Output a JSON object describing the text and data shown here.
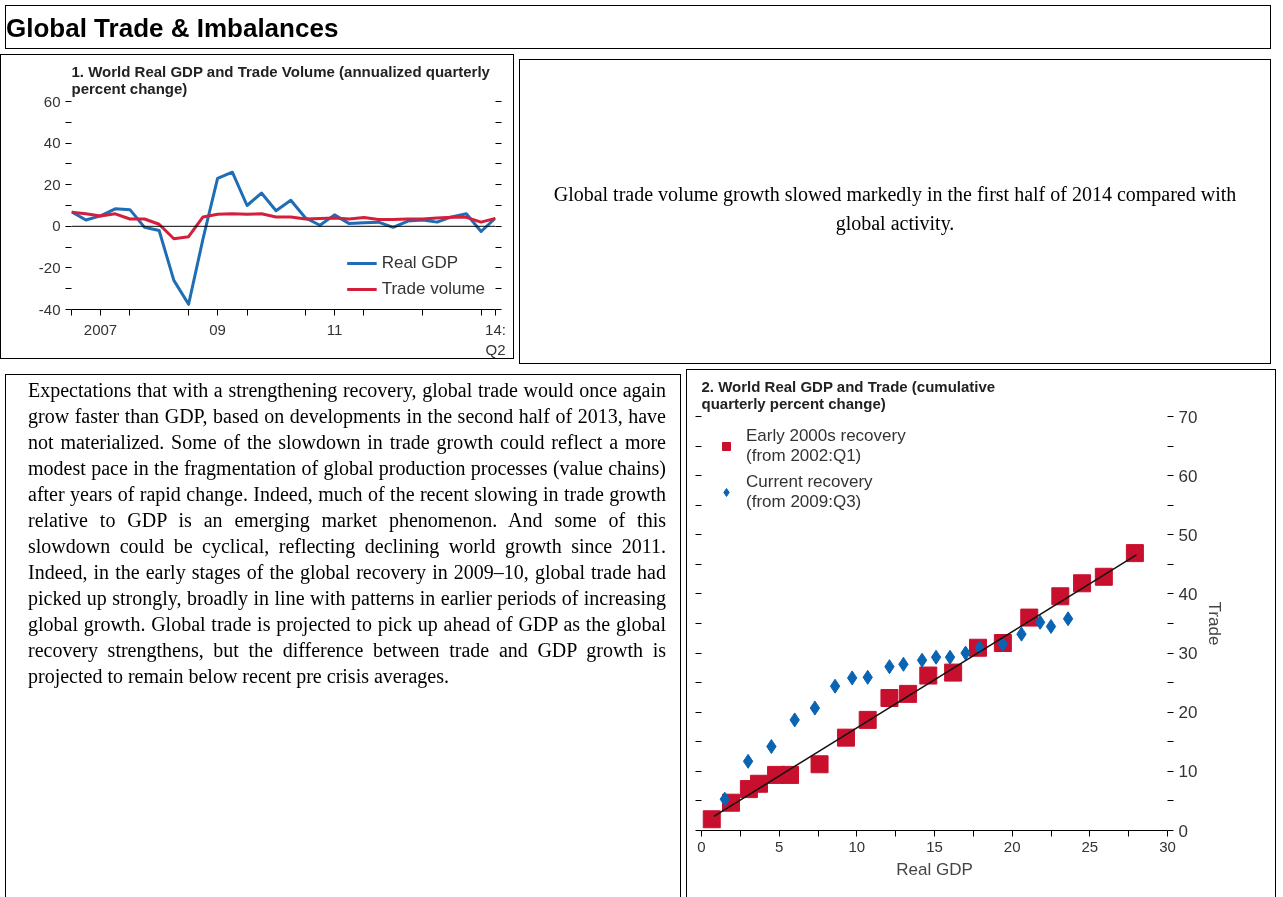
{
  "chart_data": [
    {
      "type": "other",
      "title": "Global Trade & Imbalances"
    },
    {
      "type": "line",
      "title": "1. World Real GDP and Trade Volume (annualized quarterly percent change)",
      "x": [
        "2007-01",
        "2007-04",
        "2007-07",
        "2007-10",
        "2008-01",
        "2008-04",
        "2008-07",
        "2008-10",
        "2009-01",
        "2009-04",
        "2009-07",
        "2009-10",
        "2010-01",
        "2010-04",
        "2010-07",
        "2010-10",
        "2011-01",
        "2011-04",
        "2011-07",
        "2011-10",
        "2012-01",
        "2012-04",
        "2012-07",
        "2012-10",
        "2013-01",
        "2013-04",
        "2013-07",
        "2013-10",
        "2014-01",
        "2014-04"
      ],
      "series": [
        {
          "name": "Real GDP",
          "color": "#1f6db5",
          "values": [
            7,
            3,
            5,
            8.4,
            8,
            -0.5,
            -2,
            -26,
            -37.5,
            -6,
            23,
            26,
            10,
            16,
            7.5,
            12.5,
            4,
            0.5,
            5.5,
            1.3,
            1.7,
            2,
            -0.5,
            2.5,
            3,
            2,
            4.5,
            6,
            -2.5,
            4
          ]
        },
        {
          "name": "Trade volume",
          "color": "#d31f3c",
          "values": [
            6.7,
            6,
            5,
            6,
            3.5,
            3.5,
            1,
            -6,
            -5,
            4.5,
            5.8,
            6,
            5.8,
            6,
            4.5,
            4.5,
            3.5,
            3.7,
            4,
            3.5,
            4.2,
            3.3,
            3.3,
            3.5,
            3.5,
            4,
            4.3,
            4.3,
            2,
            3.8
          ]
        }
      ],
      "xlim": [
        "2007-01",
        "2014-04"
      ],
      "xticks": [
        {
          "value": "2007-01",
          "label": null
        },
        {
          "value": "2007-07",
          "label": "2007"
        },
        {
          "value": "2008-01",
          "label": null
        },
        {
          "value": "2009-01",
          "label": null
        },
        {
          "value": "2009-07",
          "label": "09"
        },
        {
          "value": "2010-01",
          "label": null
        },
        {
          "value": "2011-01",
          "label": null
        },
        {
          "value": "2011-07",
          "label": "11"
        },
        {
          "value": "2012-01",
          "label": null
        },
        {
          "value": "2013-01",
          "label": null
        },
        {
          "value": "2014-01",
          "label": null
        },
        {
          "value": "2014-04",
          "label": "14:\nQ2"
        }
      ],
      "ylim": [
        -40,
        60
      ],
      "yticks": [
        -40,
        {
          "value": -30,
          "label": null
        },
        -20,
        {
          "value": -10,
          "label": null
        },
        0,
        {
          "value": 10,
          "label": null
        },
        20,
        {
          "value": 30,
          "label": null
        },
        40,
        {
          "value": 50,
          "label": null
        },
        60
      ],
      "ref_lines": [
        {
          "axis": "y",
          "value": 0,
          "color": "#000000"
        }
      ],
      "legend": "bottom right",
      "grid": false
    },
    {
      "type": "other",
      "annotations": [
        "Global trade volume growth slowed markedly in the first half of 2014 compared with global activity."
      ]
    },
    {
      "type": "other",
      "annotations": [
        "Expectations that with a strengthening recovery, global trade would once again grow faster than GDP, based on developments in the second half of 2013, have not materialized.  Some of the slowdown in trade growth could reflect a more modest pace in the fragmentation of global production processes (value chains) after years of rapid change. Indeed, much of the recent slowing in trade growth relative to GDP is an emerging market phenomenon. And some of this slowdown could be cyclical, reflecting declining world growth since 2011. Indeed, in the early stages of the global recovery in 2009–10, global trade had picked up strongly, broadly in line with patterns in earlier periods of increasing global growth. Global trade is projected to pick up ahead of GDP as the global recovery strengthens, but the difference between trade and GDP growth is projected to remain below recent pre crisis averages."
      ]
    },
    {
      "type": "scatter",
      "title": "2. World Real GDP and Trade (cumulative quarterly percent change)",
      "xlabel": "Real GDP",
      "y2label": "Trade",
      "series": [
        {
          "name": "Early 2000s recovery (from 2002:Q1)",
          "color": "#c8102e",
          "marker": "square",
          "axis": "y2",
          "x": [
            0.66,
            1.9,
            3.05,
            3.7,
            4.8,
            5.7,
            7.6,
            9.3,
            10.7,
            12.1,
            13.3,
            14.6,
            16.2,
            17.8,
            19.4,
            21.1,
            23.1,
            24.5,
            25.9,
            27.9
          ],
          "values": [
            1.9,
            4.7,
            7,
            7.9,
            9.4,
            9.4,
            11.2,
            15.7,
            18.7,
            22.4,
            23.1,
            26.2,
            26.7,
            30.9,
            31.7,
            36,
            39.6,
            41.8,
            42.9,
            46.9
          ]
        },
        {
          "name": "Current recovery (from 2009:Q3)",
          "color": "#0a64b4",
          "marker": "diamond",
          "axis": "y2",
          "x": [
            1.5,
            3,
            4.5,
            6,
            7.3,
            8.6,
            9.7,
            10.7,
            12.1,
            13,
            14.2,
            15.1,
            16,
            17,
            17.9,
            19.4,
            20.6,
            21.8,
            22.5,
            23.6
          ],
          "values": [
            5.3,
            11.7,
            14.2,
            18.7,
            20.7,
            24.4,
            25.8,
            25.9,
            27.7,
            28.1,
            28.8,
            29.3,
            29.3,
            30,
            30.9,
            31.5,
            33.2,
            35.2,
            34.5,
            35.8
          ]
        },
        {
          "type": "line",
          "color": "#111111",
          "axis": "y2",
          "x": [
            0.8,
            28
          ],
          "values": [
            2.4,
            46.6
          ]
        }
      ],
      "xlim": [
        0,
        30
      ],
      "xticks": [
        0,
        {
          "value": 2.5,
          "label": null
        },
        5,
        {
          "value": 7.5,
          "label": null
        },
        10,
        {
          "value": 12.5,
          "label": null
        },
        15,
        {
          "value": 17.5,
          "label": null
        },
        20,
        {
          "value": 22.5,
          "label": null
        },
        25,
        {
          "value": 27.5,
          "label": null
        },
        30
      ],
      "y2lim": [
        0,
        70
      ],
      "y2ticks": [
        0,
        {
          "value": 5,
          "label": null
        },
        10,
        {
          "value": 15,
          "label": null
        },
        20,
        {
          "value": 25,
          "label": null
        },
        30,
        {
          "value": 35,
          "label": null
        },
        40,
        {
          "value": 45,
          "label": null
        },
        50,
        {
          "value": 55,
          "label": null
        },
        60,
        {
          "value": 65,
          "label": null
        },
        70
      ],
      "legend": "top left",
      "grid": false
    }
  ]
}
